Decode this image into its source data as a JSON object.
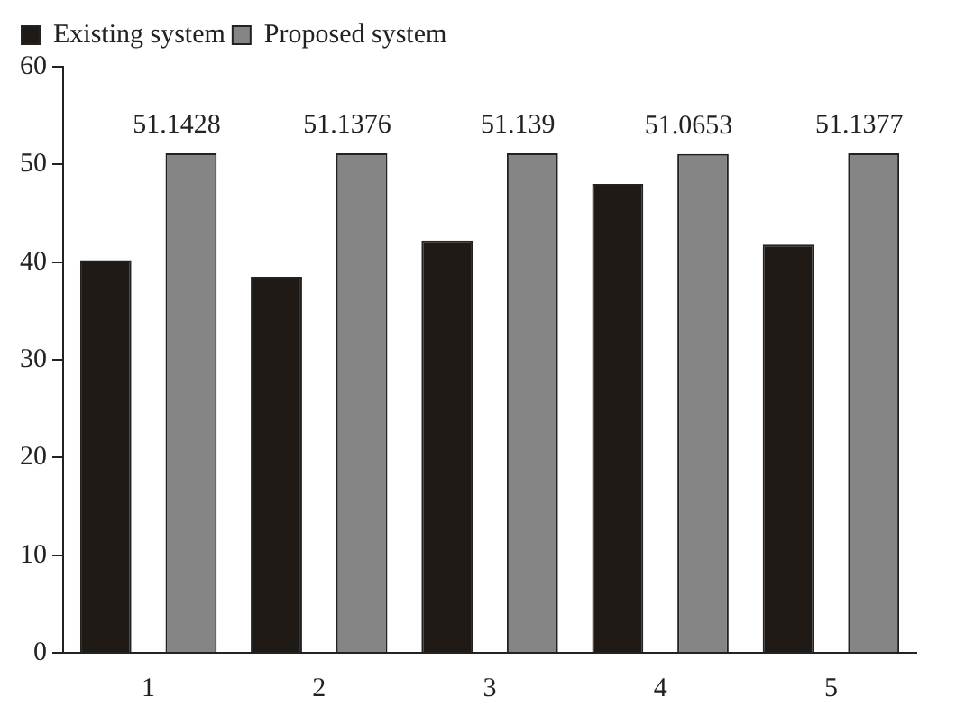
{
  "chart_data": {
    "type": "bar",
    "categories": [
      "1",
      "2",
      "3",
      "4",
      "5"
    ],
    "series": [
      {
        "name": "Existing system",
        "color": "#201a17",
        "values": [
          40.2,
          38.5,
          42.2,
          48.0,
          41.8
        ]
      },
      {
        "name": "Proposed system",
        "color": "#858585",
        "values": [
          51.1428,
          51.1376,
          51.139,
          51.0653,
          51.1377
        ],
        "value_labels": [
          "51.1428",
          "51.1376",
          "51.139",
          "51.0653",
          "51.1377"
        ]
      }
    ],
    "ylim": [
      0,
      60
    ],
    "yticks": [
      0,
      10,
      20,
      30,
      40,
      50,
      60
    ],
    "grid": false,
    "legend": "top left"
  }
}
